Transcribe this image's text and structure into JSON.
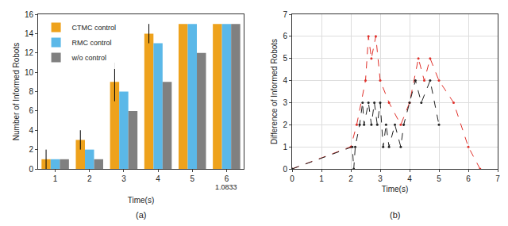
{
  "chart_data": [
    {
      "type": "bar",
      "subtitle": "(a)",
      "x_label": "Time(s)",
      "y_label": "Number of Informed Robots",
      "categories": [
        "1",
        "2",
        "3",
        "4",
        "5",
        "6"
      ],
      "series": [
        {
          "name": "CTMC control",
          "color": "#EEA21C",
          "values": [
            1,
            3,
            9,
            14,
            15,
            15
          ],
          "error": [
            1,
            1,
            2,
            1,
            0,
            0
          ]
        },
        {
          "name": "RMC control",
          "color": "#5BB8E8",
          "values": [
            1,
            2,
            8,
            13,
            15,
            15
          ]
        },
        {
          "name": "w/o control",
          "color": "#808080",
          "values": [
            1,
            1,
            6,
            9,
            12,
            15
          ]
        }
      ],
      "ylim": [
        0,
        16
      ],
      "yticks": [
        0,
        2,
        4,
        6,
        8,
        10,
        12,
        14,
        16
      ],
      "grid": false,
      "legend": "top left",
      "annotations": [
        {
          "text": "1.0833",
          "category": "6"
        }
      ]
    },
    {
      "type": "line",
      "subtitle": "(b)",
      "x_label": "Time(s)",
      "y_label": "Difference of Informed Robots",
      "series": [
        {
          "color": "#E0302A",
          "line_style": "dashed",
          "marker": "circle",
          "x": [
            0,
            2.0,
            2.2,
            2.5,
            2.6,
            2.7,
            2.85,
            3.0,
            3.3,
            3.7,
            4.0,
            4.3,
            4.5,
            4.7,
            5.0,
            5.5,
            6.0,
            6.4
          ],
          "values": [
            0,
            1,
            2,
            4,
            6,
            5,
            6,
            4,
            3,
            2,
            3,
            5,
            4,
            5,
            4,
            3,
            1,
            0
          ]
        },
        {
          "color": "#222222",
          "line_style": "dashed",
          "marker": "circle",
          "x": [
            0,
            2.05,
            2.1,
            2.15,
            2.3,
            2.4,
            2.45,
            2.6,
            2.7,
            2.8,
            2.9,
            3.0,
            3.1,
            3.2,
            3.3,
            3.5,
            3.7,
            3.8,
            4.0,
            4.2,
            4.4,
            4.7,
            5.0
          ],
          "values": [
            0,
            1,
            0,
            1,
            2,
            3,
            2,
            3,
            2,
            3,
            2,
            3,
            1,
            2,
            1,
            2,
            1,
            2,
            3,
            4,
            3,
            4,
            2
          ]
        }
      ],
      "xlim": [
        0,
        7
      ],
      "xticks": [
        0,
        1,
        2,
        3,
        4,
        5,
        6,
        7
      ],
      "ylim": [
        0,
        7
      ],
      "yticks": [
        0,
        1,
        2,
        3,
        4,
        5,
        6,
        7
      ],
      "grid": true
    }
  ]
}
